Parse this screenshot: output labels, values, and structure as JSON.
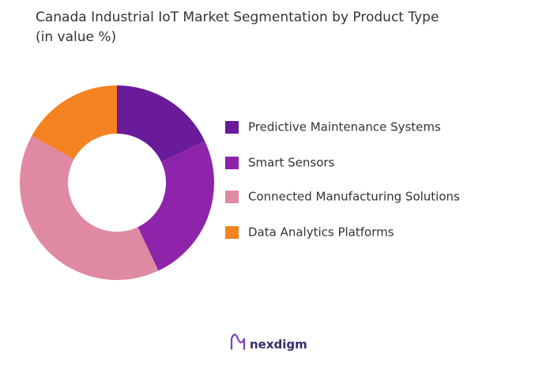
{
  "chart_data": {
    "type": "donut",
    "title": "Canada Industrial IoT Market Segmentation by Product Type",
    "subtitle": "(in value %)",
    "categories": [
      "Predictive Maintenance Systems",
      "Smart Sensors",
      "Connected Manufacturing Solutions",
      "Data Analytics Platforms"
    ],
    "values": [
      18,
      25,
      40,
      17
    ],
    "colors": [
      "#6a1b9a",
      "#8e24aa",
      "#df8aa2",
      "#f58220"
    ]
  },
  "brand": "nexdigm"
}
